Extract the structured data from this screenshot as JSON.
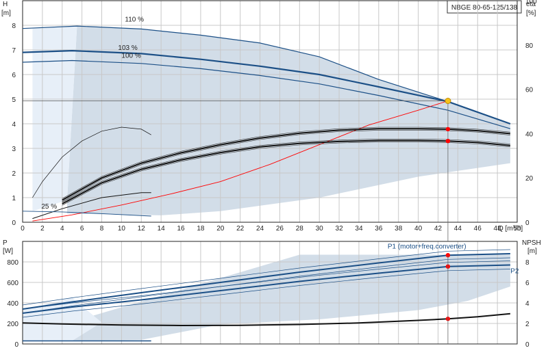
{
  "chart_data": [
    {
      "type": "line",
      "title": "NBGE 80-65-125/138",
      "xlabel": "Q [m³/h]",
      "ylabel": "H",
      "ylabel_unit": "[m]",
      "y2label": "eta",
      "y2label_unit": "[%]",
      "xlim": [
        0,
        50
      ],
      "ylim": [
        0,
        9
      ],
      "y2lim": [
        0,
        100
      ],
      "x_ticks": [
        0,
        2,
        4,
        6,
        8,
        10,
        12,
        14,
        16,
        18,
        20,
        22,
        24,
        26,
        28,
        30,
        32,
        34,
        36,
        38,
        40,
        42,
        44,
        46,
        48,
        50
      ],
      "y_ticks": [
        0,
        1,
        2,
        3,
        4,
        5,
        6,
        7,
        8
      ],
      "y2_ticks": [
        0,
        20,
        40,
        60,
        80,
        100
      ],
      "grid": true,
      "colors": {
        "curve": "#1b4f86",
        "fill": "#d2dde8",
        "fill_light": "#e7eff8",
        "system": "#ff0000",
        "marker": "#ff0000",
        "duty": "#f7c31a"
      },
      "annotations": [
        "110 %",
        "103 %",
        "100 %",
        "25 %"
      ],
      "series": [
        {
          "name": "110 %",
          "x": [
            0,
            5.5,
            12,
            18,
            24,
            30,
            36,
            43,
            49.3
          ],
          "values": [
            7.87,
            7.97,
            7.85,
            7.6,
            7.28,
            6.72,
            5.8,
            4.9,
            4.0
          ]
        },
        {
          "name": "103 %",
          "x": [
            0,
            5,
            12,
            18,
            24,
            30,
            36,
            43,
            49.3
          ],
          "values": [
            6.9,
            6.97,
            6.85,
            6.62,
            6.34,
            6.0,
            5.5,
            4.9,
            4.0
          ]
        },
        {
          "name": "100 %",
          "x": [
            0,
            5,
            12,
            18,
            24,
            30,
            36,
            43,
            49.3
          ],
          "values": [
            6.5,
            6.57,
            6.45,
            6.24,
            5.96,
            5.62,
            5.15,
            4.55,
            3.8
          ]
        },
        {
          "x": [
            0,
            43
          ],
          "values": [
            4.93,
            4.93
          ]
        },
        {
          "x": [
            1,
            5,
            10,
            15,
            20,
            25,
            30,
            35,
            40,
            43
          ],
          "values": [
            0.05,
            0.3,
            0.7,
            1.15,
            1.65,
            2.35,
            3.15,
            3.95,
            4.55,
            4.93
          ]
        },
        {
          "x": [
            1,
            2,
            4,
            6,
            8,
            10,
            12,
            13
          ],
          "values": [
            1.0,
            1.65,
            2.65,
            3.3,
            3.7,
            3.86,
            3.78,
            3.55
          ]
        },
        {
          "x": [
            1,
            4,
            8,
            12,
            13
          ],
          "values": [
            0.15,
            0.55,
            1.0,
            1.2,
            1.2
          ]
        },
        {
          "x": [
            0,
            4,
            8,
            13
          ],
          "values": [
            0.45,
            0.42,
            0.35,
            0.25
          ]
        },
        {
          "x": [
            4,
            8,
            12,
            16,
            20,
            24,
            28,
            32,
            36,
            40,
            43,
            46,
            49.3
          ],
          "values": [
            0.9,
            1.8,
            2.4,
            2.82,
            3.15,
            3.42,
            3.62,
            3.74,
            3.8,
            3.8,
            3.78,
            3.72,
            3.6
          ]
        },
        {
          "x": [
            4,
            8,
            12,
            16,
            20,
            24,
            28,
            32,
            36,
            40,
            43,
            46,
            49.3
          ],
          "values": [
            0.75,
            1.6,
            2.15,
            2.53,
            2.83,
            3.06,
            3.2,
            3.28,
            3.32,
            3.32,
            3.3,
            3.24,
            3.12
          ]
        }
      ],
      "markers": [
        {
          "x": 43,
          "y": 4.93,
          "kind": "duty"
        },
        {
          "x": 43,
          "y": 3.78,
          "kind": "eta"
        },
        {
          "x": 43,
          "y": 3.3,
          "kind": "eta"
        }
      ]
    },
    {
      "type": "line",
      "xlabel": "",
      "ylabel": "P",
      "ylabel_unit": "[W]",
      "y2label": "NPSH",
      "y2label_unit": "[m]",
      "xlim": [
        0,
        50
      ],
      "ylim": [
        0,
        1000
      ],
      "y2lim": [
        0,
        10
      ],
      "y_ticks": [
        0,
        200,
        400,
        600,
        800
      ],
      "y2_ticks": [
        0,
        2,
        4,
        6,
        8
      ],
      "grid": true,
      "series": [
        {
          "name": "P1 (motor+freq.converter)",
          "x": [
            0,
            5,
            12,
            20,
            28,
            36,
            43,
            49.3
          ],
          "values": [
            340,
            410,
            500,
            600,
            700,
            790,
            865,
            880
          ]
        },
        {
          "name": "P2",
          "x": [
            0,
            5,
            12,
            20,
            28,
            36,
            43,
            49.3
          ],
          "values": [
            300,
            360,
            430,
            520,
            610,
            690,
            755,
            770
          ]
        },
        {
          "x": [
            0,
            4,
            10,
            16,
            22,
            28,
            34,
            40,
            43,
            46,
            49.3
          ],
          "values": [
            205,
            195,
            185,
            180,
            182,
            190,
            205,
            230,
            245,
            265,
            295
          ]
        },
        {
          "x": [
            0,
            13
          ],
          "values": [
            30,
            30
          ]
        }
      ],
      "markers": [
        {
          "x": 43,
          "y": 865
        },
        {
          "x": 43,
          "y": 755
        },
        {
          "x": 43,
          "y": 245
        }
      ]
    }
  ]
}
